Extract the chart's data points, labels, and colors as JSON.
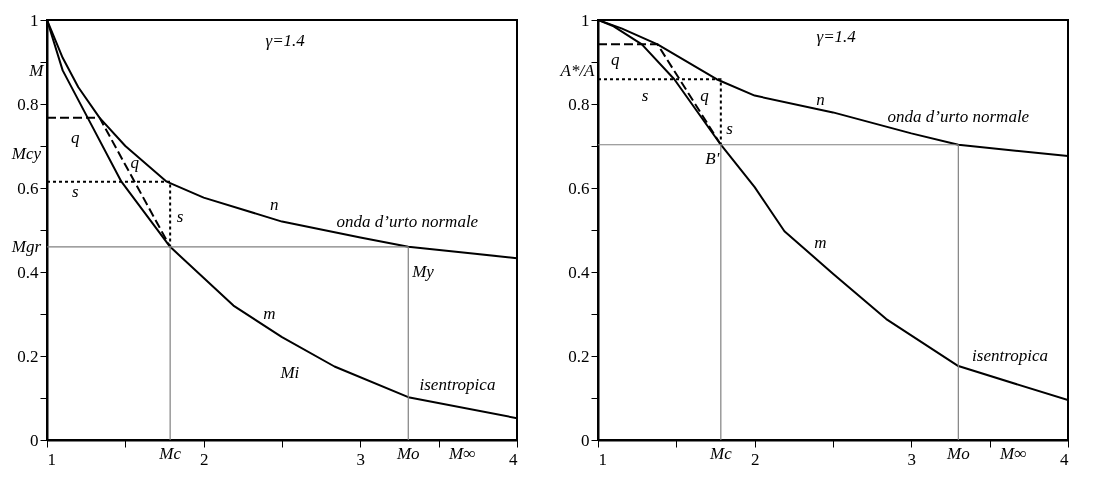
{
  "chart_data": [
    {
      "type": "line",
      "ylabel": "M",
      "xlim": [
        1,
        4
      ],
      "ylim": [
        0,
        1
      ],
      "xticks": [
        1,
        {
          "value": 1.5,
          "label": null
        },
        2,
        {
          "value": 2.5,
          "label": null
        },
        3,
        {
          "value": 3.5,
          "label": null
        },
        4
      ],
      "yticks": [
        0,
        {
          "value": 0.1,
          "label": null
        },
        0.2,
        {
          "value": 0.3,
          "label": null
        },
        0.4,
        {
          "value": 0.5,
          "label": null
        },
        0.6,
        {
          "value": 0.7,
          "label": null
        },
        0.8,
        {
          "value": 0.9,
          "label": null
        },
        1
      ],
      "grid": false,
      "line_style": "solid",
      "series": [
        {
          "color": "#000000",
          "x": [
            1,
            1.1,
            1.2,
            1.336,
            1.5,
            1.764,
            2,
            2.5,
            3,
            3.306,
            4
          ],
          "values": [
            1,
            0.91,
            0.84,
            0.767,
            0.7,
            0.615,
            0.577,
            0.52,
            0.482,
            0.46,
            0.433
          ]
        },
        {
          "color": "#000000",
          "x": [
            1,
            1.1,
            1.26,
            1.475,
            1.786,
            2.19,
            2.5,
            2.835,
            3.306,
            4
          ],
          "values": [
            1,
            0.88,
            0.767,
            0.615,
            0.46,
            0.32,
            0.245,
            0.175,
            0.102,
            0.052
          ]
        },
        {
          "color": "#000000",
          "line_style": "dashed",
          "x": [
            1,
            1.336,
            1.786
          ],
          "values": [
            0.767,
            0.767,
            0.46
          ]
        },
        {
          "color": "#000000",
          "line_style": "dotted",
          "x": [
            1,
            1.786,
            1.786
          ],
          "values": [
            0.615,
            0.615,
            0.46
          ]
        },
        {
          "color": "#808080",
          "x": [
            1,
            3.306
          ],
          "values": [
            0.46,
            0.46
          ]
        },
        {
          "color": "#808080",
          "x": [
            1.786,
            1.786
          ],
          "values": [
            0,
            0.46
          ]
        },
        {
          "color": "#808080",
          "x": [
            3.306,
            3.306
          ],
          "values": [
            0,
            0.46
          ]
        }
      ],
      "annotations": [
        "γ=1.4",
        "q",
        "q",
        "s",
        "s",
        "n",
        "onda d’urto normale",
        "My",
        "m",
        "Mi",
        "isentropica",
        "Mcy",
        "M∞",
        {
          "text": "Mgr",
          "x": 1,
          "y": 0.46
        },
        {
          "text": "Mc",
          "x": 1.786,
          "y": 0
        },
        {
          "text": "Mo",
          "x": 3.306,
          "y": 0
        }
      ]
    },
    {
      "type": "line",
      "ylabel": "A*/A",
      "xlim": [
        1,
        4
      ],
      "ylim": [
        0,
        1
      ],
      "xticks": [
        1,
        {
          "value": 1.5,
          "label": null
        },
        2,
        {
          "value": 2.5,
          "label": null
        },
        3,
        {
          "value": 3.5,
          "label": null
        },
        4
      ],
      "yticks": [
        0,
        {
          "value": 0.1,
          "label": null
        },
        0.2,
        {
          "value": 0.3,
          "label": null
        },
        0.4,
        {
          "value": 0.5,
          "label": null
        },
        0.6,
        {
          "value": 0.7,
          "label": null
        },
        0.8,
        {
          "value": 0.9,
          "label": null
        },
        1
      ],
      "grid": false,
      "line_style": "solid",
      "series": [
        {
          "color": "#000000",
          "x": [
            1,
            1.15,
            1.38,
            1.757,
            2,
            2.5,
            3,
            3.3,
            4
          ],
          "values": [
            1,
            0.98,
            0.942,
            0.859,
            0.82,
            0.78,
            0.73,
            0.703,
            0.676
          ]
        },
        {
          "color": "#000000",
          "x": [
            1,
            1.1,
            1.28,
            1.487,
            1.784,
            2,
            2.19,
            2.5,
            2.84,
            3.3,
            4
          ],
          "values": [
            1,
            0.985,
            0.942,
            0.859,
            0.703,
            0.602,
            0.497,
            0.396,
            0.288,
            0.176,
            0.095
          ]
        },
        {
          "color": "#000000",
          "line_style": "dashed",
          "x": [
            1,
            1.38,
            1.784
          ],
          "values": [
            0.942,
            0.942,
            0.703
          ]
        },
        {
          "color": "#000000",
          "line_style": "dotted",
          "x": [
            1,
            1.784,
            1.784
          ],
          "values": [
            0.859,
            0.859,
            0.703
          ]
        },
        {
          "color": "#808080",
          "x": [
            1,
            3.3
          ],
          "values": [
            0.703,
            0.703
          ]
        },
        {
          "color": "#808080",
          "x": [
            1.784,
            1.784
          ],
          "values": [
            0,
            0.703
          ]
        },
        {
          "color": "#808080",
          "x": [
            3.3,
            3.3
          ],
          "values": [
            0,
            0.703
          ]
        }
      ],
      "annotations": [
        "γ=1.4",
        "q",
        "s",
        "q",
        "s",
        "B'",
        "n",
        "onda d’urto normale",
        "m",
        "isentropica",
        "M∞",
        {
          "text": "Mc",
          "x": 1.784,
          "y": 0
        },
        {
          "text": "Mo",
          "x": 3.3,
          "y": 0
        }
      ]
    }
  ]
}
